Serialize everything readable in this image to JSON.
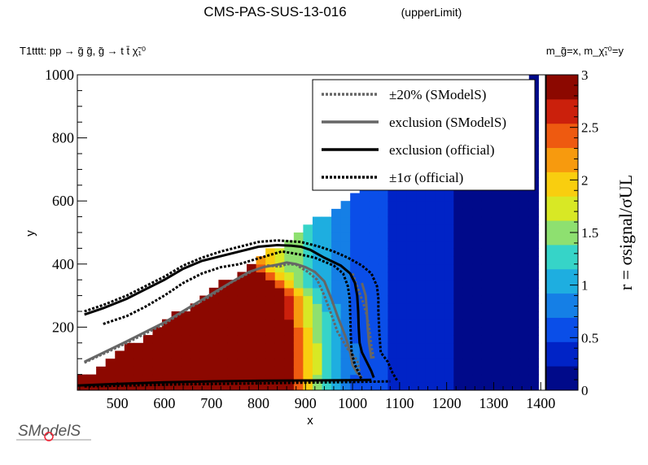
{
  "chart_data": {
    "type": "heatmap",
    "title": "CMS-PAS-SUS-13-016",
    "subtitle": "(upperLimit)",
    "process_label": "T1tttt: pp → g̃ g̃, g̃ → t t̄ χ̃₁⁰",
    "mass_label": "m_g̃=x, m_χ̃₁⁰=y",
    "xlabel": "x",
    "ylabel": "y",
    "zlabel": "r = σsignal/σUL",
    "xlim": [
      415,
      1410
    ],
    "ylim": [
      0,
      1000
    ],
    "zlim": [
      0,
      3
    ],
    "xticks": [
      "500",
      "600",
      "700",
      "800",
      "900",
      "1000",
      "1100",
      "1200",
      "1300",
      "1400"
    ],
    "yticks": [
      "200",
      "400",
      "600",
      "800",
      "1000"
    ],
    "zticks": [
      "0",
      "0.5",
      "1",
      "1.5",
      "2",
      "2.5",
      "3"
    ],
    "grid": false,
    "legend_position": "top-right",
    "heatmap": {
      "cell_size_x": 20,
      "cell_size_y": 25,
      "x_start": 415,
      "x_end": 1395,
      "y_start": 0,
      "region_boundary_note": "cells exist for y <= x - 385 (approx diagonal); r decreases with mass",
      "saturated_region": "r >= 3 for x <= ~850 below diagonal",
      "transition_center_x": [
        [
          0,
          880
        ],
        [
          100,
          890
        ],
        [
          200,
          880
        ],
        [
          300,
          870
        ],
        [
          400,
          800
        ]
      ]
    },
    "series": [
      {
        "name": "±20% (SModelS)",
        "style": "dotted-gray",
        "lines": [
          [
            [
              430,
              87
            ],
            [
              520,
              150
            ],
            [
              600,
              210
            ],
            [
              650,
              258
            ],
            [
              700,
              300
            ],
            [
              740,
              340
            ],
            [
              790,
              380
            ],
            [
              820,
              395
            ],
            [
              845,
              392
            ],
            [
              860,
              400
            ],
            [
              880,
              398
            ],
            [
              905,
              375
            ],
            [
              925,
              350
            ],
            [
              940,
              300
            ],
            [
              955,
              240
            ],
            [
              968,
              185
            ],
            [
              990,
              130
            ],
            [
              1010,
              95
            ],
            [
              1015,
              60
            ]
          ],
          [
            [
              1000,
              370
            ],
            [
              1012,
              320
            ],
            [
              1022,
              280
            ],
            [
              1030,
              240
            ],
            [
              1035,
              200
            ],
            [
              1040,
              140
            ],
            [
              1045,
              100
            ]
          ]
        ]
      },
      {
        "name": "exclusion (SModelS)",
        "style": "solid-gray",
        "lines": [
          [
            [
              430,
              90
            ],
            [
              520,
              155
            ],
            [
              600,
              215
            ],
            [
              650,
              260
            ],
            [
              700,
              305
            ],
            [
              745,
              345
            ],
            [
              780,
              375
            ],
            [
              810,
              390
            ],
            [
              840,
              398
            ],
            [
              860,
              405
            ],
            [
              880,
              400
            ],
            [
              900,
              390
            ],
            [
              920,
              375
            ],
            [
              940,
              345
            ],
            [
              955,
              290
            ],
            [
              968,
              235
            ],
            [
              985,
              170
            ],
            [
              995,
              120
            ],
            [
              1000,
              80
            ],
            [
              1010,
              55
            ],
            [
              1020,
              40
            ]
          ],
          [
            [
              1020,
              340
            ],
            [
              1028,
              300
            ],
            [
              1030,
              260
            ],
            [
              1032,
              200
            ],
            [
              1035,
              150
            ],
            [
              1040,
              100
            ]
          ]
        ]
      },
      {
        "name": "exclusion (official)",
        "style": "solid-black",
        "lines": [
          [
            [
              430,
              240
            ],
            [
              470,
              260
            ],
            [
              520,
              290
            ],
            [
              560,
              320
            ],
            [
              600,
              350
            ],
            [
              640,
              385
            ],
            [
              680,
              410
            ],
            [
              720,
              425
            ],
            [
              760,
              440
            ],
            [
              800,
              455
            ],
            [
              840,
              460
            ],
            [
              870,
              458
            ],
            [
              890,
              455
            ],
            [
              910,
              445
            ],
            [
              940,
              420
            ],
            [
              975,
              395
            ],
            [
              995,
              370
            ],
            [
              1005,
              340
            ],
            [
              1010,
              300
            ],
            [
              1012,
              250
            ],
            [
              1013,
              200
            ],
            [
              1015,
              150
            ],
            [
              1020,
              120
            ],
            [
              1030,
              90
            ],
            [
              1040,
              60
            ],
            [
              1045,
              40
            ]
          ],
          [
            [
              415,
              15
            ],
            [
              500,
              20
            ],
            [
              600,
              25
            ],
            [
              700,
              28
            ],
            [
              800,
              30
            ],
            [
              900,
              31
            ],
            [
              1000,
              32
            ],
            [
              1040,
              33
            ]
          ]
        ]
      },
      {
        "name": "±1σ (official)",
        "style": "dotted-black",
        "lines": [
          [
            [
              430,
              250
            ],
            [
              470,
              270
            ],
            [
              520,
              300
            ],
            [
              560,
              330
            ],
            [
              600,
              360
            ],
            [
              640,
              395
            ],
            [
              680,
              420
            ],
            [
              720,
              440
            ],
            [
              760,
              455
            ],
            [
              800,
              470
            ],
            [
              840,
              475
            ],
            [
              870,
              472
            ],
            [
              890,
              470
            ],
            [
              930,
              455
            ],
            [
              960,
              440
            ],
            [
              990,
              420
            ],
            [
              1020,
              395
            ],
            [
              1040,
              370
            ],
            [
              1052,
              330
            ],
            [
              1055,
              290
            ],
            [
              1055,
              250
            ],
            [
              1057,
              180
            ],
            [
              1060,
              120
            ],
            [
              1075,
              90
            ],
            [
              1085,
              55
            ],
            [
              1095,
              30
            ]
          ],
          [
            [
              470,
              210
            ],
            [
              520,
              235
            ],
            [
              560,
              265
            ],
            [
              600,
              300
            ],
            [
              640,
              340
            ],
            [
              680,
              370
            ],
            [
              720,
              390
            ],
            [
              760,
              400
            ],
            [
              800,
              418
            ],
            [
              850,
              440
            ],
            [
              890,
              430
            ],
            [
              920,
              420
            ],
            [
              960,
              395
            ],
            [
              980,
              370
            ],
            [
              990,
              330
            ],
            [
              994,
              290
            ],
            [
              995,
              240
            ],
            [
              996,
              180
            ],
            [
              998,
              120
            ],
            [
              1005,
              80
            ],
            [
              1015,
              50
            ],
            [
              1020,
              30
            ]
          ],
          [
            [
              430,
              12
            ],
            [
              520,
              15
            ],
            [
              620,
              18
            ],
            [
              720,
              20
            ],
            [
              820,
              22
            ],
            [
              900,
              24
            ],
            [
              1000,
              26
            ],
            [
              1080,
              28
            ]
          ]
        ]
      }
    ]
  },
  "logo": {
    "text": "SModelS"
  },
  "colors": {
    "background": "#ffffff",
    "gray_line": "#666666",
    "black_line": "#000000",
    "palette": [
      "#000a8a",
      "#0023c6",
      "#0a4ee8",
      "#157fe6",
      "#1eaee0",
      "#36d4c8",
      "#8ee070",
      "#d8e825",
      "#f9ce0f",
      "#f79a0e",
      "#ee5a10",
      "#cb200c",
      "#8c0800"
    ]
  }
}
